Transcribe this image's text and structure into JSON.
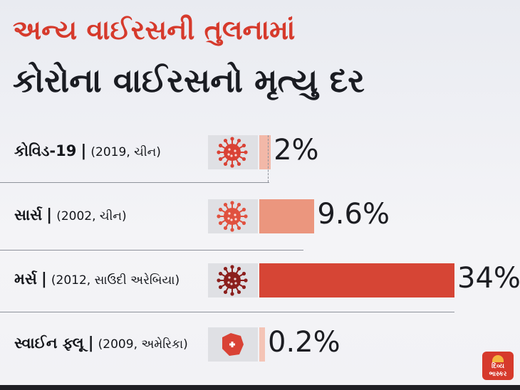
{
  "title": "અન્ય વાઈરસની તુલનામાં",
  "subtitle": "કોરોના વાઈરસનો મૃત્યુ દર",
  "chart_data": {
    "type": "bar",
    "orientation": "horizontal",
    "title": "અન્ય વાઈરસની તુલનામાં",
    "subtitle": "કોરોના વાઈરસનો મૃત્યુ દર",
    "categories": [
      "કોવિડ-19",
      "સાર્સ",
      "મર્સ",
      "સ્વાઈન ફ્લૂ"
    ],
    "category_details": [
      "(2019, ચીન)",
      "(2002, ચીન)",
      "(2012, સાઉદી અરેબિયા)",
      "(2009, અમેરિકા)"
    ],
    "values": [
      2,
      9.6,
      34,
      0.2
    ],
    "value_labels": [
      "2%",
      "9.6%",
      "34%",
      "0.2%"
    ],
    "unit": "%",
    "xlim": [
      0,
      34
    ],
    "bar_colors": [
      "#f2b8a8",
      "#eb967e",
      "#d64535",
      "#f4c4b6"
    ],
    "grid": false,
    "legend": "none"
  },
  "icons": [
    "covid-virus-icon",
    "sars-virus-icon",
    "mers-virus-icon",
    "swine-flu-virus-icon"
  ],
  "separator": "|",
  "logo": {
    "line1": "દિવ્ય",
    "line2": "ભાસ્કર"
  }
}
